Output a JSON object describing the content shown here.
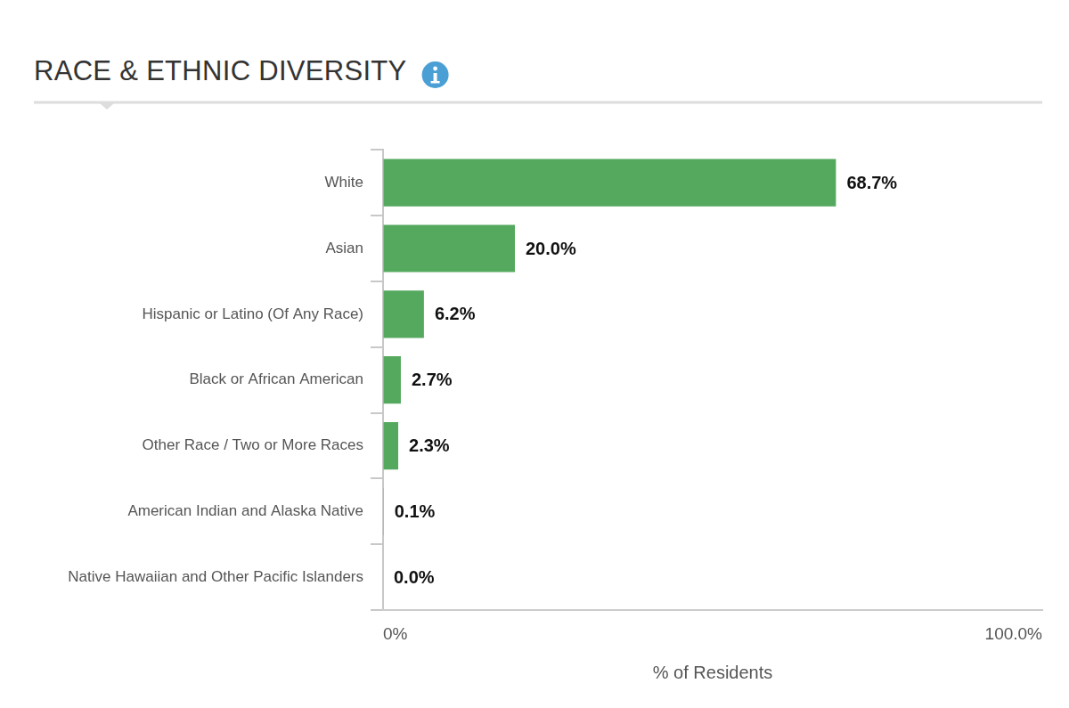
{
  "chart_data": {
    "type": "bar",
    "orientation": "horizontal",
    "title": "RACE & ETHNIC DIVERSITY",
    "x_label": "% of Residents",
    "categories": [
      "White",
      "Asian",
      "Hispanic or Latino (Of Any Race)",
      "Black or African American",
      "Other Race / Two or More Races",
      "American Indian and Alaska Native",
      "Native Hawaiian and Other Pacific Islanders"
    ],
    "values": [
      68.7,
      20.0,
      6.2,
      2.7,
      2.3,
      0.1,
      0.0
    ],
    "value_labels": [
      "68.7%",
      "20.0%",
      "6.2%",
      "2.7%",
      "2.3%",
      "0.1%",
      "0.0%"
    ],
    "data_labels": true,
    "color": "#55a95f",
    "xlim": [
      0,
      100
    ],
    "xticks": [
      {
        "value": 0,
        "label": "0%"
      },
      {
        "value": 100,
        "label": "100.0%"
      }
    ],
    "grid": false
  }
}
